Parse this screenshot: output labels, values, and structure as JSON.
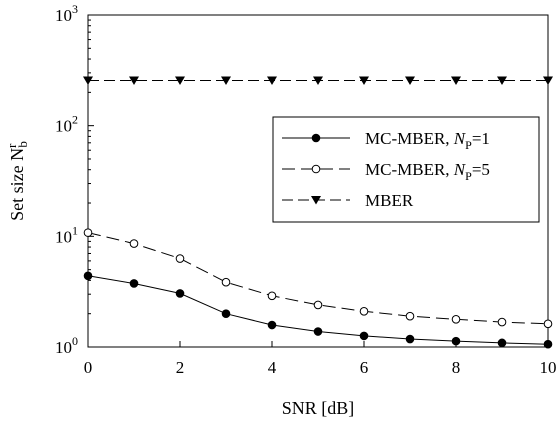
{
  "chart_data": {
    "type": "line",
    "xlabel": "SNR [dB]",
    "ylabel": {
      "main": "Set size N",
      "sup": "r",
      "sub": "b"
    },
    "xlim": [
      0,
      10
    ],
    "ylim": [
      1,
      1000
    ],
    "yscale": "log",
    "x_ticks": [
      "0",
      "2",
      "4",
      "6",
      "8",
      "10"
    ],
    "y_ticks": [
      {
        "base": "10",
        "exp": "0"
      },
      {
        "base": "10",
        "exp": "1"
      },
      {
        "base": "10",
        "exp": "2"
      },
      {
        "base": "10",
        "exp": "3"
      }
    ],
    "legend_position": "top-right",
    "x": [
      0,
      1,
      2,
      3,
      4,
      5,
      6,
      7,
      8,
      9,
      10
    ],
    "series": [
      {
        "name": "MC-MBER, N_P=1",
        "label": {
          "text": "MC-MBER, ",
          "var": "N",
          "sub": "P",
          "rest": "=1"
        },
        "values": [
          4.4,
          3.75,
          3.05,
          2.0,
          1.58,
          1.38,
          1.26,
          1.18,
          1.13,
          1.09,
          1.06
        ],
        "marker": "filled-circle",
        "dash": "solid"
      },
      {
        "name": "MC-MBER, N_P=5",
        "label": {
          "text": "MC-MBER, ",
          "var": "N",
          "sub": "P",
          "rest": "=5"
        },
        "values": [
          10.8,
          8.6,
          6.3,
          3.85,
          2.9,
          2.4,
          2.1,
          1.9,
          1.78,
          1.68,
          1.62
        ],
        "marker": "open-circle",
        "dash": "long-dash"
      },
      {
        "name": "MBER",
        "label": {
          "text": "MBER",
          "var": "",
          "sub": "",
          "rest": ""
        },
        "values": [
          256,
          256,
          256,
          256,
          256,
          256,
          256,
          256,
          256,
          256,
          256
        ],
        "marker": "filled-triangle-down",
        "dash": "dash"
      }
    ]
  }
}
